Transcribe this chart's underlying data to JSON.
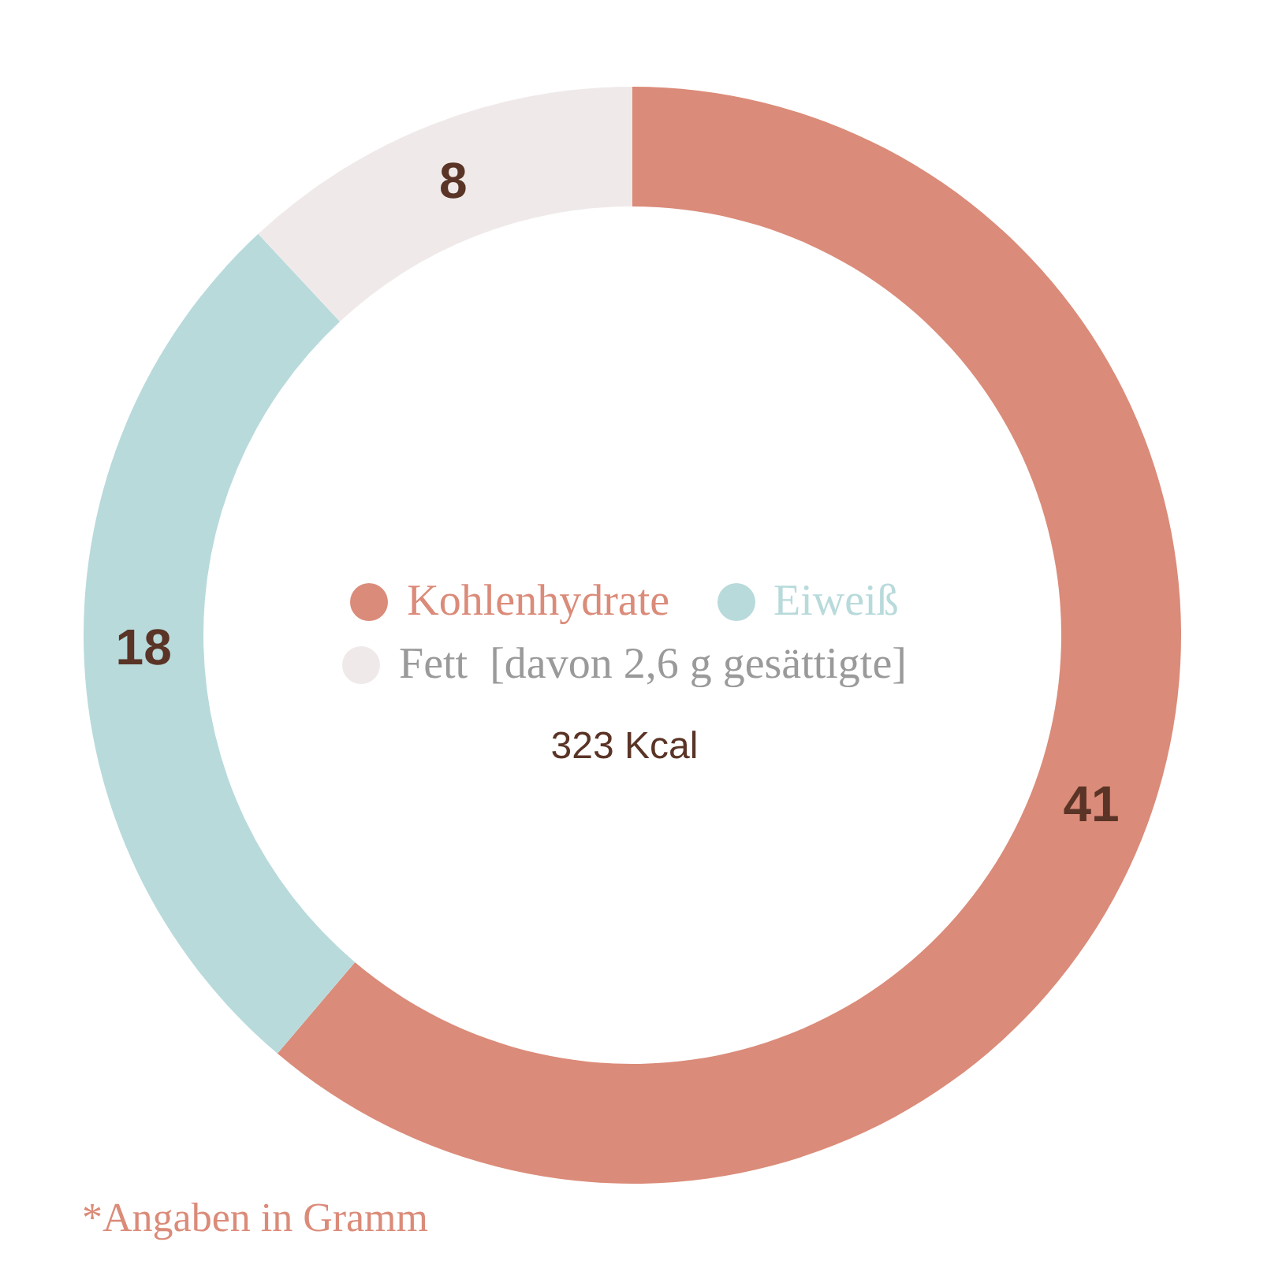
{
  "chart_data": {
    "type": "donut",
    "categories": [
      "Kohlenhydrate",
      "Eiweiß",
      "Fett  [davon 2,6 g gesättigte]"
    ],
    "values": [
      41,
      18,
      8
    ],
    "colors": [
      "#db8b79",
      "#b8dadb",
      "#efeae9"
    ],
    "data_labels": true,
    "legend": "center",
    "annotations": [
      "323 Kcal",
      "*Angaben in Gramm"
    ]
  }
}
